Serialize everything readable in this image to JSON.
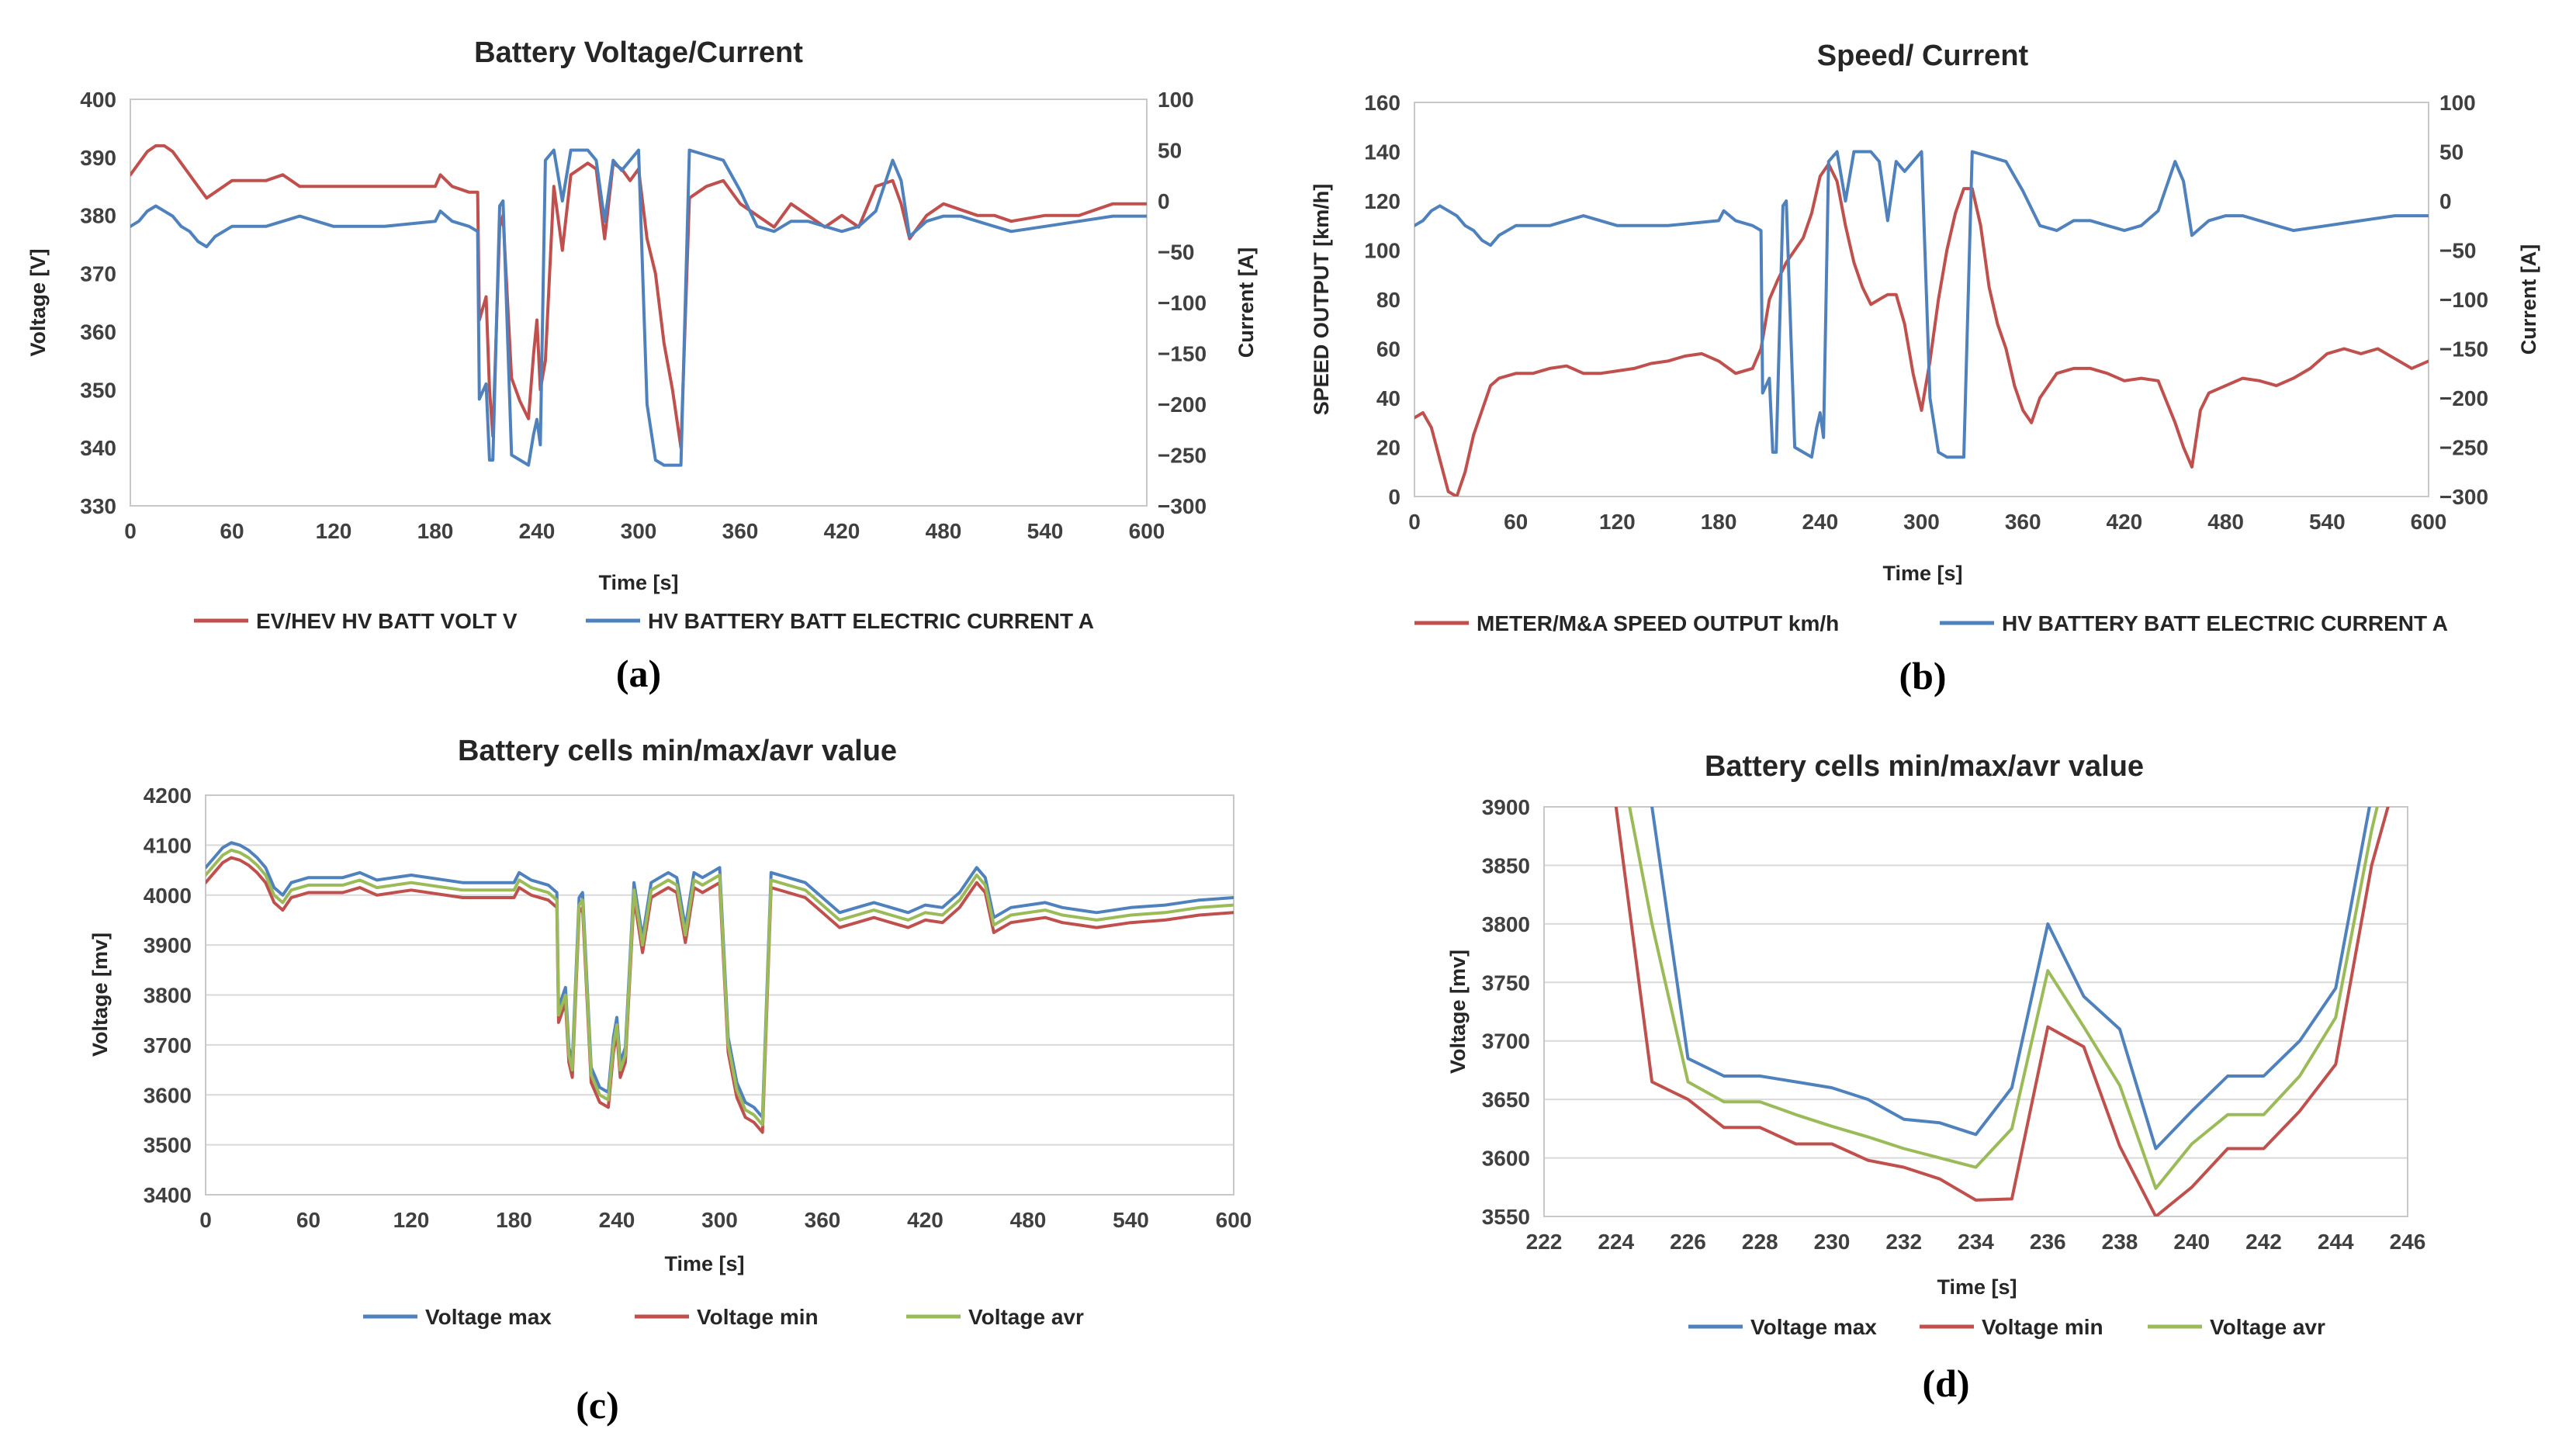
{
  "colors": {
    "red": "#c0504d",
    "blue": "#4f81bd",
    "green": "#9bbb59"
  },
  "chart_data": [
    {
      "id": "a",
      "type": "line",
      "title": "Battery Voltage/Current",
      "panel_label": "(a)",
      "xlabel": "Time [s]",
      "ylabel": "Voltage [V]",
      "y2label": "Current [A]",
      "xlim": [
        0,
        600
      ],
      "xticks": [
        "0",
        "60",
        "120",
        "180",
        "240",
        "300",
        "360",
        "420",
        "480",
        "540",
        "600"
      ],
      "ylim": [
        330,
        400
      ],
      "yticks": [
        "330",
        "340",
        "350",
        "360",
        "370",
        "380",
        "390",
        "400"
      ],
      "y2lim": [
        -300,
        100
      ],
      "y2ticks": [
        "−300",
        "−250",
        "−200",
        "−150",
        "−100",
        "−50",
        "0",
        "50",
        "100"
      ],
      "legend_position": "bottom",
      "series": [
        {
          "name": "EV/HEV HV BATT VOLT V",
          "color": "#c0504d",
          "axis": "left",
          "x": [
            0,
            5,
            10,
            15,
            20,
            25,
            30,
            35,
            40,
            45,
            50,
            60,
            80,
            90,
            100,
            120,
            150,
            180,
            183,
            190,
            200,
            205,
            206,
            210,
            212,
            214,
            218,
            220,
            225,
            230,
            235,
            238,
            240,
            242,
            245,
            250,
            255,
            260,
            265,
            270,
            275,
            280,
            285,
            290,
            295,
            300,
            305,
            310,
            315,
            320,
            325,
            330,
            340,
            350,
            360,
            370,
            380,
            390,
            400,
            410,
            420,
            430,
            440,
            450,
            455,
            460,
            470,
            480,
            490,
            500,
            510,
            520,
            540,
            560,
            580,
            600
          ],
          "y": [
            387,
            389,
            391,
            392,
            392,
            391,
            389,
            387,
            385,
            383,
            384,
            386,
            386,
            387,
            385,
            385,
            385,
            385,
            387,
            385,
            384,
            384,
            362,
            366,
            350,
            342,
            378,
            380,
            352,
            348,
            345,
            356,
            362,
            350,
            355,
            385,
            374,
            387,
            388,
            389,
            388,
            376,
            389,
            388,
            386,
            388,
            376,
            370,
            358,
            350,
            340,
            383,
            385,
            386,
            382,
            380,
            378,
            382,
            380,
            378,
            380,
            378,
            385,
            386,
            382,
            376,
            380,
            382,
            381,
            380,
            380,
            379,
            380,
            380,
            382,
            382
          ]
        },
        {
          "name": "HV BATTERY BATT ELECTRIC CURRENT A",
          "color": "#4f81bd",
          "axis": "right",
          "x": [
            0,
            5,
            10,
            15,
            20,
            25,
            30,
            35,
            40,
            45,
            50,
            60,
            80,
            90,
            100,
            120,
            150,
            180,
            183,
            190,
            200,
            205,
            206,
            210,
            212,
            214,
            218,
            220,
            225,
            230,
            235,
            238,
            240,
            242,
            245,
            250,
            255,
            260,
            265,
            270,
            275,
            280,
            285,
            290,
            295,
            300,
            305,
            310,
            315,
            320,
            325,
            330,
            340,
            350,
            360,
            370,
            380,
            390,
            400,
            410,
            420,
            430,
            440,
            450,
            455,
            460,
            470,
            480,
            490,
            500,
            510,
            520,
            540,
            560,
            580,
            600
          ],
          "y": [
            -25,
            -20,
            -10,
            -5,
            -10,
            -15,
            -25,
            -30,
            -40,
            -45,
            -35,
            -25,
            -25,
            -20,
            -15,
            -25,
            -25,
            -20,
            -10,
            -20,
            -25,
            -30,
            -195,
            -180,
            -255,
            -255,
            -5,
            0,
            -250,
            -255,
            -260,
            -230,
            -215,
            -240,
            40,
            50,
            0,
            50,
            50,
            50,
            40,
            -20,
            40,
            30,
            40,
            50,
            -200,
            -255,
            -260,
            -260,
            -260,
            50,
            45,
            40,
            10,
            -25,
            -30,
            -20,
            -20,
            -25,
            -30,
            -25,
            -10,
            40,
            20,
            -35,
            -20,
            -15,
            -15,
            -20,
            -25,
            -30,
            -25,
            -20,
            -15,
            -15
          ]
        }
      ]
    },
    {
      "id": "b",
      "type": "line",
      "title": "Speed/ Current",
      "panel_label": "(b)",
      "xlabel": "Time [s]",
      "ylabel": "SPEED OUTPUT [km/h]",
      "y2label": "Current [A]",
      "xlim": [
        0,
        600
      ],
      "xticks": [
        "0",
        "60",
        "120",
        "180",
        "240",
        "300",
        "360",
        "420",
        "480",
        "540",
        "600"
      ],
      "ylim": [
        0,
        160
      ],
      "yticks": [
        "0",
        "20",
        "40",
        "60",
        "80",
        "100",
        "120",
        "140",
        "160"
      ],
      "y2lim": [
        -300,
        100
      ],
      "y2ticks": [
        "−300",
        "−250",
        "−200",
        "−150",
        "−100",
        "−50",
        "0",
        "50",
        "100"
      ],
      "legend_position": "bottom",
      "series": [
        {
          "name": "METER/M&A SPEED OUTPUT km/h",
          "color": "#c0504d",
          "axis": "left",
          "x": [
            0,
            5,
            10,
            15,
            20,
            25,
            30,
            35,
            40,
            45,
            50,
            60,
            70,
            80,
            90,
            100,
            110,
            120,
            130,
            140,
            150,
            160,
            170,
            180,
            190,
            200,
            205,
            210,
            215,
            220,
            225,
            230,
            235,
            240,
            245,
            250,
            255,
            260,
            265,
            270,
            275,
            280,
            285,
            290,
            295,
            300,
            305,
            310,
            315,
            320,
            325,
            330,
            335,
            340,
            345,
            350,
            355,
            360,
            365,
            370,
            380,
            390,
            400,
            410,
            420,
            430,
            440,
            450,
            455,
            460,
            465,
            470,
            480,
            490,
            500,
            510,
            520,
            530,
            540,
            550,
            560,
            570,
            580,
            590,
            600
          ],
          "y": [
            32,
            34,
            28,
            15,
            2,
            0,
            10,
            25,
            35,
            45,
            48,
            50,
            50,
            52,
            53,
            50,
            50,
            51,
            52,
            54,
            55,
            57,
            58,
            55,
            50,
            52,
            60,
            80,
            88,
            95,
            100,
            105,
            115,
            130,
            135,
            128,
            110,
            95,
            85,
            78,
            80,
            82,
            82,
            70,
            50,
            35,
            55,
            80,
            100,
            115,
            125,
            125,
            110,
            85,
            70,
            60,
            45,
            35,
            30,
            40,
            50,
            52,
            52,
            50,
            47,
            48,
            47,
            30,
            20,
            12,
            35,
            42,
            45,
            48,
            47,
            45,
            48,
            52,
            58,
            60,
            58,
            60,
            56,
            52,
            55
          ]
        },
        {
          "name": "HV BATTERY BATT ELECTRIC CURRENT A",
          "color": "#4f81bd",
          "axis": "right",
          "x": [
            0,
            5,
            10,
            15,
            20,
            25,
            30,
            35,
            40,
            45,
            50,
            60,
            80,
            90,
            100,
            120,
            150,
            180,
            183,
            190,
            200,
            205,
            206,
            210,
            212,
            214,
            218,
            220,
            225,
            230,
            235,
            238,
            240,
            242,
            245,
            250,
            255,
            260,
            265,
            270,
            275,
            280,
            285,
            290,
            295,
            300,
            305,
            310,
            315,
            320,
            325,
            330,
            340,
            350,
            360,
            370,
            380,
            390,
            400,
            410,
            420,
            430,
            440,
            450,
            455,
            460,
            470,
            480,
            490,
            500,
            510,
            520,
            540,
            560,
            580,
            600
          ],
          "y": [
            -25,
            -20,
            -10,
            -5,
            -10,
            -15,
            -25,
            -30,
            -40,
            -45,
            -35,
            -25,
            -25,
            -20,
            -15,
            -25,
            -25,
            -20,
            -10,
            -20,
            -25,
            -30,
            -195,
            -180,
            -255,
            -255,
            -5,
            0,
            -250,
            -255,
            -260,
            -230,
            -215,
            -240,
            40,
            50,
            0,
            50,
            50,
            50,
            40,
            -20,
            40,
            30,
            40,
            50,
            -200,
            -255,
            -260,
            -260,
            -260,
            50,
            45,
            40,
            10,
            -25,
            -30,
            -20,
            -20,
            -25,
            -30,
            -25,
            -10,
            40,
            20,
            -35,
            -20,
            -15,
            -15,
            -20,
            -25,
            -30,
            -25,
            -20,
            -15,
            -15
          ]
        }
      ]
    },
    {
      "id": "c",
      "type": "line",
      "title": "Battery cells min/max/avr value",
      "panel_label": "(c)",
      "xlabel": "Time [s]",
      "ylabel": "Voltage [mv]",
      "xlim": [
        0,
        600
      ],
      "xticks": [
        "0",
        "60",
        "120",
        "180",
        "240",
        "300",
        "360",
        "420",
        "480",
        "540",
        "600"
      ],
      "ylim": [
        3400,
        4200
      ],
      "yticks": [
        "3400",
        "3500",
        "3600",
        "3700",
        "3800",
        "3900",
        "4000",
        "4100",
        "4200"
      ],
      "grid": true,
      "legend_position": "bottom",
      "x": [
        0,
        5,
        10,
        15,
        20,
        25,
        30,
        35,
        40,
        45,
        50,
        60,
        80,
        90,
        100,
        120,
        150,
        180,
        183,
        190,
        200,
        205,
        206,
        210,
        212,
        214,
        218,
        220,
        225,
        230,
        235,
        238,
        240,
        242,
        245,
        250,
        255,
        260,
        265,
        270,
        275,
        280,
        285,
        290,
        295,
        300,
        305,
        310,
        315,
        320,
        325,
        330,
        340,
        350,
        360,
        370,
        380,
        390,
        400,
        410,
        420,
        430,
        440,
        450,
        455,
        460,
        470,
        480,
        490,
        500,
        510,
        520,
        540,
        560,
        580,
        600
      ],
      "base": [
        4040,
        4060,
        4080,
        4090,
        4085,
        4075,
        4060,
        4040,
        4000,
        3985,
        4010,
        4020,
        4020,
        4030,
        4015,
        4025,
        4010,
        4010,
        4030,
        4015,
        4005,
        3990,
        3760,
        3800,
        3680,
        3650,
        3980,
        3990,
        3640,
        3600,
        3590,
        3700,
        3740,
        3650,
        3680,
        4010,
        3900,
        4010,
        4020,
        4030,
        4020,
        3920,
        4030,
        4020,
        4030,
        4040,
        3700,
        3610,
        3570,
        3560,
        3540,
        4030,
        4020,
        4010,
        3980,
        3950,
        3960,
        3970,
        3960,
        3950,
        3965,
        3960,
        3990,
        4040,
        4020,
        3940,
        3960,
        3965,
        3970,
        3960,
        3955,
        3950,
        3960,
        3965,
        3975,
        3980
      ],
      "series": [
        {
          "name": "Voltage max",
          "color": "#4f81bd",
          "offset": 15
        },
        {
          "name": "Voltage min",
          "color": "#c0504d",
          "offset": -15
        },
        {
          "name": "Voltage avr",
          "color": "#9bbb59",
          "offset": 0
        }
      ]
    },
    {
      "id": "d",
      "type": "line",
      "title": "Battery cells min/max/avr value",
      "panel_label": "(d)",
      "xlabel": "Time [s]",
      "ylabel": "Voltage [mv]",
      "xlim": [
        222,
        246
      ],
      "xticks": [
        "222",
        "224",
        "226",
        "228",
        "230",
        "232",
        "234",
        "236",
        "238",
        "240",
        "242",
        "244",
        "246"
      ],
      "ylim": [
        3550,
        3900
      ],
      "yticks": [
        "3550",
        "3600",
        "3650",
        "3700",
        "3750",
        "3800",
        "3850",
        "3900"
      ],
      "grid": true,
      "legend_position": "bottom",
      "x": [
        224,
        225,
        226,
        227,
        228,
        229,
        230,
        231,
        232,
        233,
        234,
        235,
        236,
        237,
        238,
        239,
        240,
        241,
        242,
        243,
        244,
        245,
        246
      ],
      "series": [
        {
          "name": "Voltage max",
          "color": "#4f81bd",
          "values": [
            4060,
            3900,
            3685,
            3670,
            3670,
            3665,
            3660,
            3650,
            3633,
            3630,
            3620,
            3660,
            3800,
            3738,
            3710,
            3608,
            3640,
            3670,
            3670,
            3700,
            3745,
            3910,
            4050
          ]
        },
        {
          "name": "Voltage min",
          "color": "#c0504d",
          "values": [
            3900,
            3665,
            3650,
            3626,
            3626,
            3612,
            3612,
            3598,
            3592,
            3582,
            3564,
            3565,
            3712,
            3695,
            3610,
            3550,
            3575,
            3608,
            3608,
            3640,
            3680,
            3850,
            3960
          ]
        },
        {
          "name": "Voltage avr",
          "color": "#9bbb59",
          "values": [
            3960,
            3800,
            3665,
            3648,
            3648,
            3637,
            3627,
            3618,
            3608,
            3600,
            3592,
            3625,
            3760,
            3712,
            3662,
            3574,
            3612,
            3637,
            3637,
            3670,
            3720,
            3880,
            4010
          ]
        }
      ]
    }
  ]
}
